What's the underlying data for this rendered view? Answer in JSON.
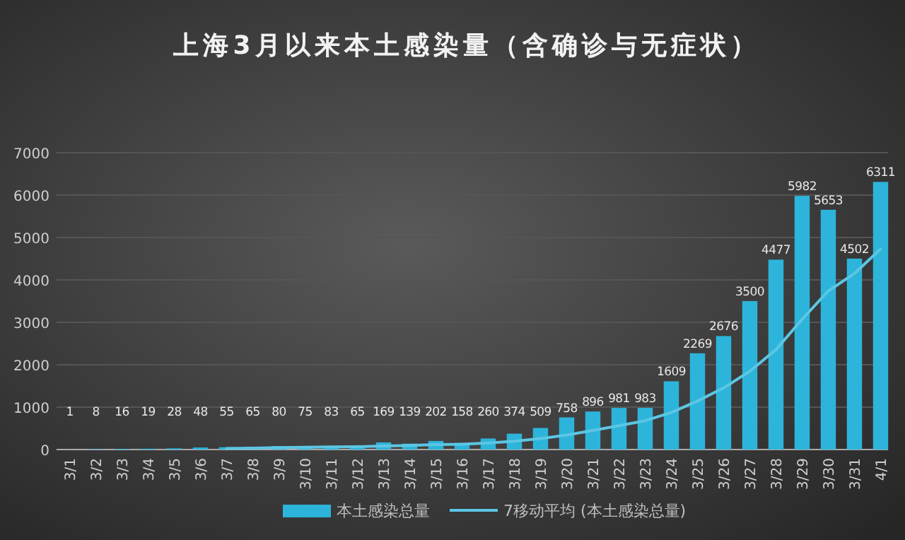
{
  "chart_data": {
    "type": "bar",
    "title": "上海3月以来本土感染量（含确诊与无症状）",
    "categories": [
      "3/1",
      "3/2",
      "3/3",
      "3/4",
      "3/5",
      "3/6",
      "3/7",
      "3/8",
      "3/9",
      "3/10",
      "3/11",
      "3/12",
      "3/13",
      "3/14",
      "3/15",
      "3/16",
      "3/17",
      "3/18",
      "3/19",
      "3/20",
      "3/21",
      "3/22",
      "3/23",
      "3/24",
      "3/25",
      "3/26",
      "3/27",
      "3/28",
      "3/29",
      "3/30",
      "3/31",
      "4/1"
    ],
    "series": [
      {
        "name": "本土感染总量",
        "color": "#2db4da",
        "values": [
          1,
          8,
          16,
          19,
          28,
          48,
          55,
          65,
          80,
          75,
          83,
          65,
          169,
          139,
          202,
          158,
          260,
          374,
          509,
          758,
          896,
          981,
          983,
          1609,
          2269,
          2676,
          3500,
          4477,
          5982,
          5653,
          4502,
          6311
        ],
        "value_labels": [
          "1",
          "8",
          "16",
          "19",
          "28",
          "48",
          "55",
          "65",
          "80",
          "75",
          "83",
          "65",
          "169",
          "139",
          "202",
          "158",
          "260",
          "374",
          "509",
          "758",
          "896",
          "981",
          "983",
          "1609",
          "2269",
          "2676",
          "3500",
          "4477",
          "5982",
          "5653",
          "4502",
          "6311"
        ]
      },
      {
        "name": "7移动平均 (本土感染总量)",
        "type": "line",
        "color": "#5cc6e3",
        "values": [
          null,
          null,
          null,
          null,
          null,
          null,
          25,
          34,
          44,
          53,
          62,
          67,
          85,
          97,
          116,
          127,
          154,
          195,
          259,
          343,
          451,
          562,
          680,
          873,
          1144,
          1453,
          1845,
          2356,
          3071,
          3738,
          4151,
          4729
        ]
      }
    ],
    "ylim": [
      0,
      7000
    ],
    "yticks": [
      0,
      1000,
      2000,
      3000,
      4000,
      5000,
      6000,
      7000
    ],
    "grid": "y",
    "legend": "bottom",
    "marker": "none",
    "line_style": "solid"
  }
}
